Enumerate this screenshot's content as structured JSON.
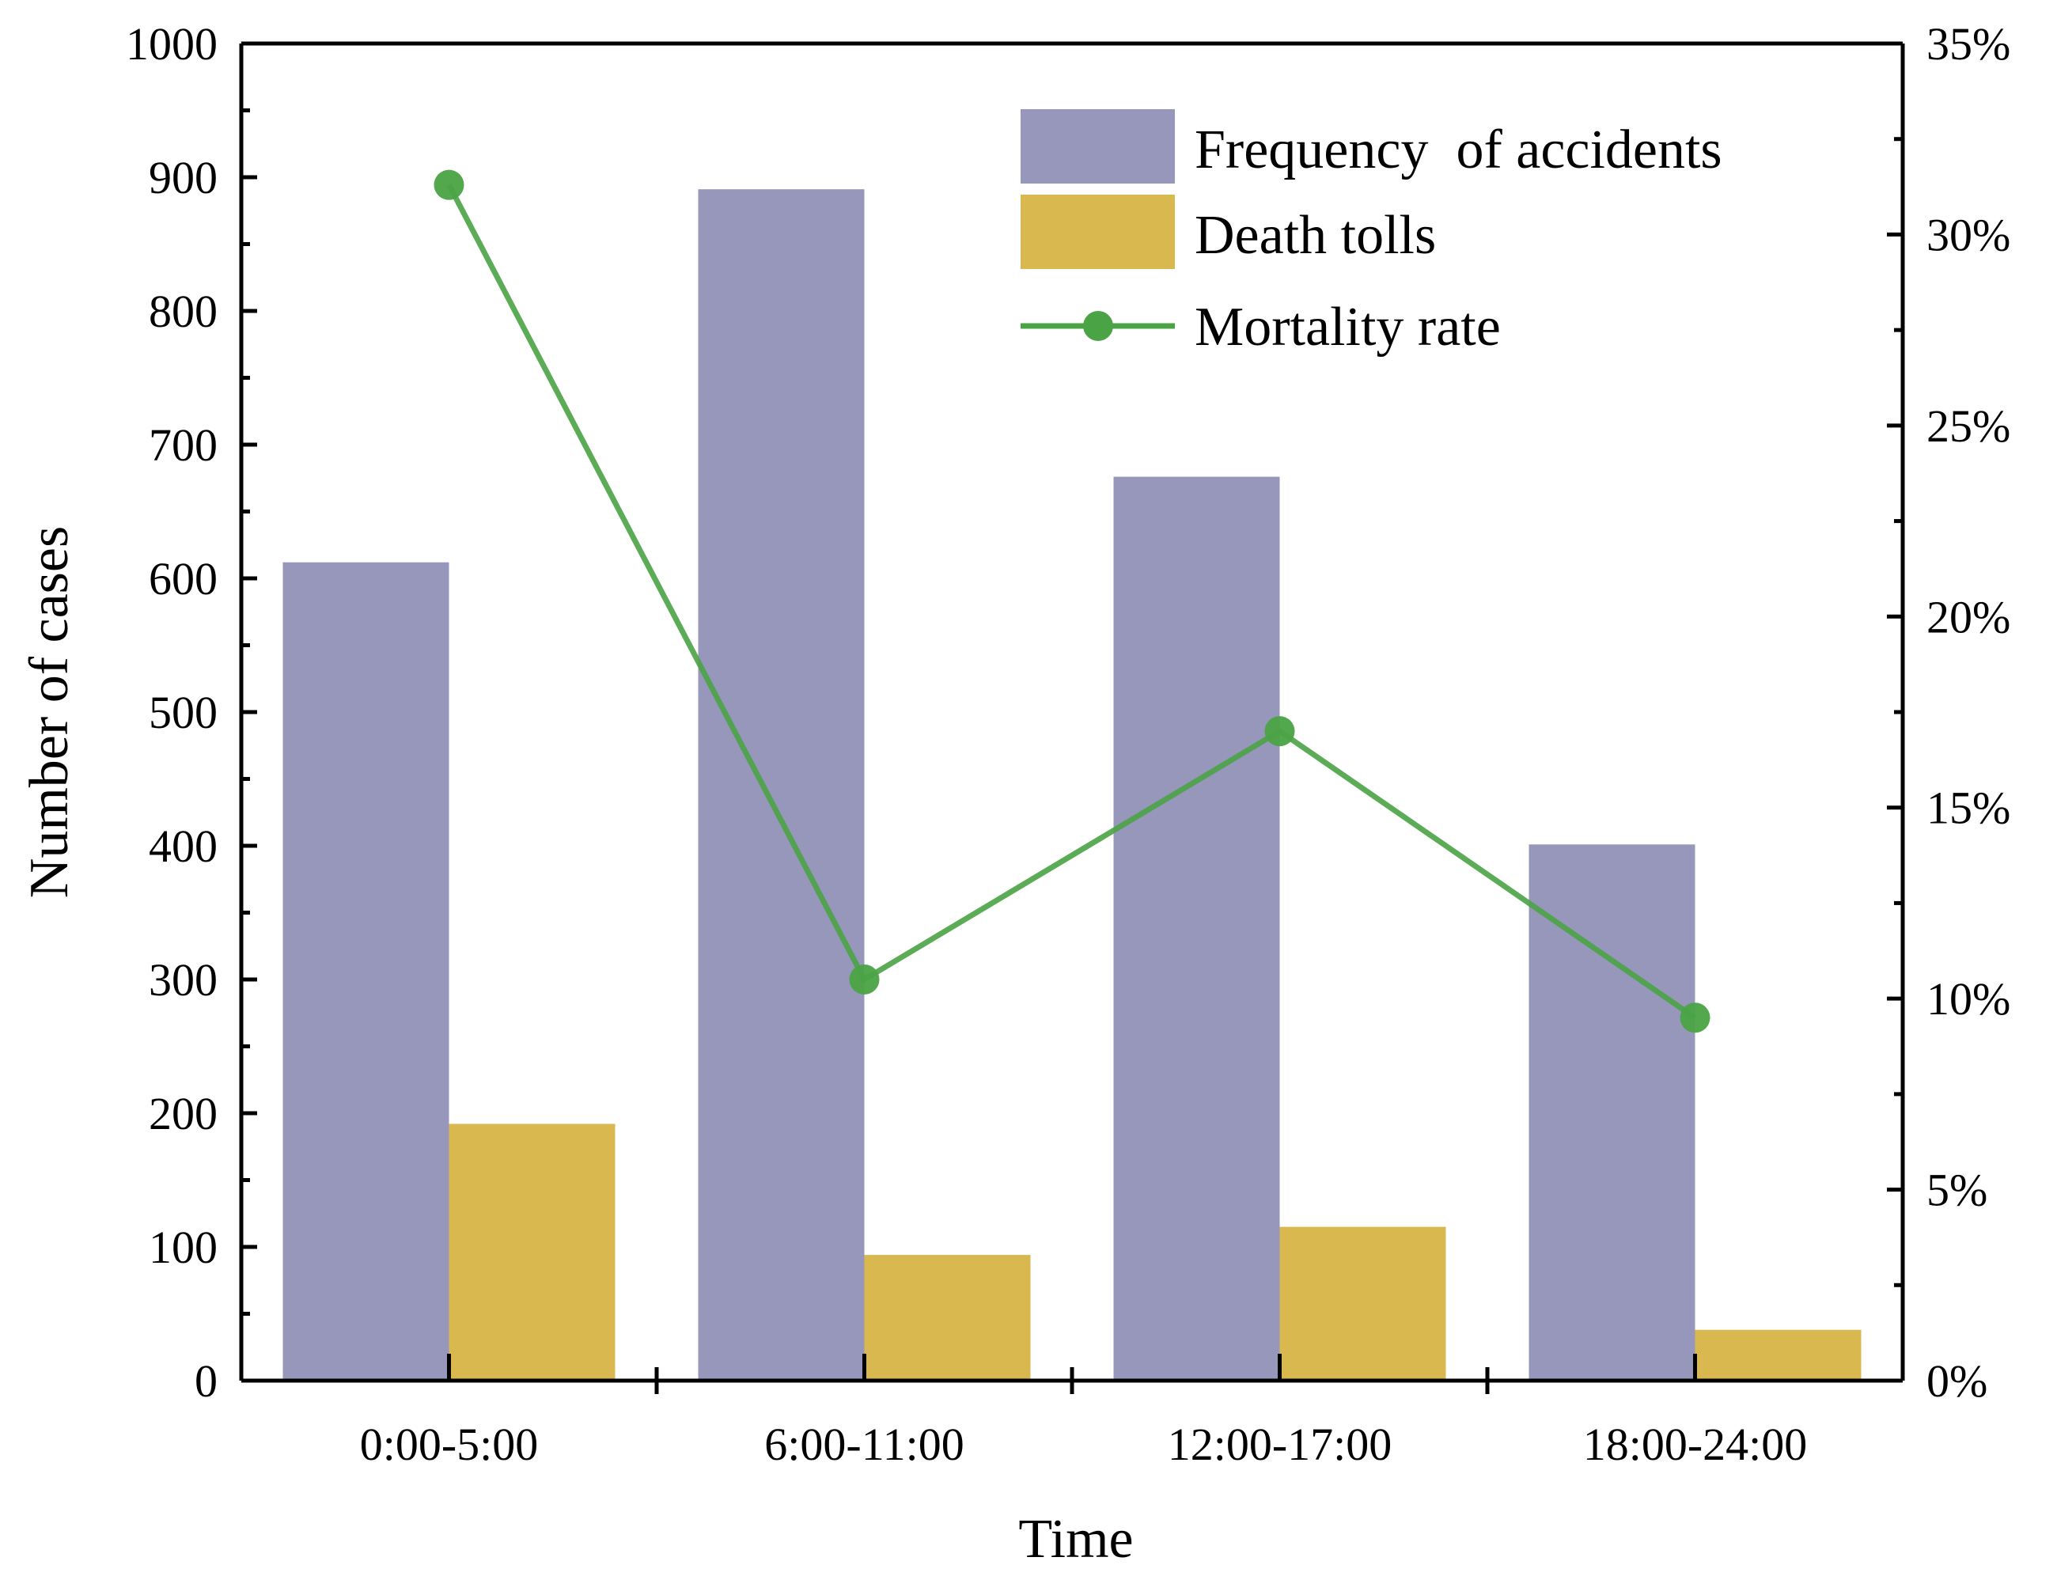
{
  "chart_data": {
    "type": "bar",
    "categories": [
      "0:00-5:00",
      "6:00-11:00",
      "12:00-17:00",
      "18:00-24:00"
    ],
    "series": [
      {
        "name": "Frequency  of accidents",
        "kind": "bar",
        "axis": "left",
        "values": [
          612,
          891,
          676,
          401
        ],
        "color": "#9797bc"
      },
      {
        "name": "Death tolls",
        "kind": "bar",
        "axis": "left",
        "values": [
          192,
          94,
          115,
          38
        ],
        "color": "#d9b84f"
      },
      {
        "name": "Mortality rate",
        "kind": "line",
        "axis": "right",
        "values": [
          31.3,
          10.5,
          17.0,
          9.5
        ],
        "color": "#4aa345"
      }
    ],
    "xlabel": "Time",
    "ylabel": "Number of cases",
    "ylim": [
      0,
      1000
    ],
    "yticks": [
      "0",
      "100",
      "200",
      "300",
      "400",
      "500",
      "600",
      "700",
      "800",
      "900",
      "1000"
    ],
    "y2lim": [
      0,
      35
    ],
    "y2ticks": [
      "0%",
      "5%",
      "10%",
      "15%",
      "20%",
      "25%",
      "30%",
      "35%"
    ],
    "legend_position": "top-right",
    "grid": false
  }
}
